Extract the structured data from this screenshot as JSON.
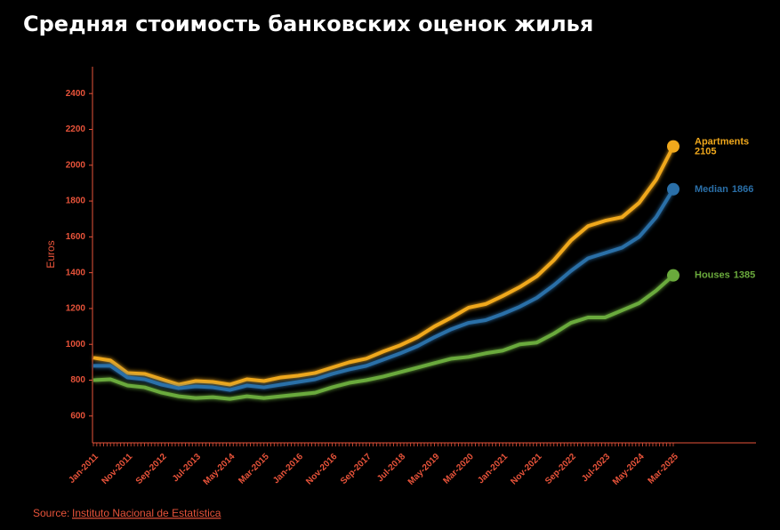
{
  "chart_data": {
    "type": "line",
    "title": "Средняя стоимость банковских оценок жилья",
    "y_label": "Euros",
    "source_prefix": "Source:",
    "source_link": "Instituto Nacional de Estatística",
    "categories": [
      "Jan-2011",
      null,
      "Nov-2011",
      null,
      "Sep-2012",
      null,
      "Jul-2013",
      null,
      "May-2014",
      null,
      "Mar-2015",
      null,
      "Jan-2016",
      null,
      "Nov-2016",
      null,
      "Sep-2017",
      null,
      "Jul-2018",
      null,
      "May-2019",
      null,
      "Mar-2020",
      null,
      "Jan-2021",
      null,
      "Nov-2021",
      null,
      "Sep-2022",
      null,
      "Jul-2023",
      null,
      "May-2024",
      null,
      "Mar-2025"
    ],
    "series": [
      {
        "name": "Apartments",
        "color": "#f0a81c",
        "values": [
          925,
          910,
          840,
          835,
          805,
          775,
          795,
          790,
          775,
          805,
          795,
          815,
          825,
          840,
          870,
          900,
          920,
          960,
          995,
          1040,
          1100,
          1150,
          1205,
          1225,
          1270,
          1320,
          1380,
          1470,
          1580,
          1660,
          1690,
          1710,
          1790,
          1920,
          2105
        ]
      },
      {
        "name": "Median",
        "color": "#2a6fa8",
        "values": [
          880,
          880,
          815,
          805,
          775,
          755,
          765,
          760,
          745,
          770,
          760,
          775,
          790,
          805,
          835,
          860,
          880,
          915,
          950,
          990,
          1040,
          1085,
          1120,
          1135,
          1170,
          1210,
          1260,
          1330,
          1410,
          1480,
          1510,
          1540,
          1600,
          1710,
          1866
        ]
      },
      {
        "name": "Houses",
        "color": "#6aaa3c",
        "values": [
          800,
          805,
          770,
          760,
          730,
          710,
          700,
          705,
          695,
          710,
          700,
          710,
          720,
          730,
          760,
          785,
          800,
          820,
          845,
          870,
          895,
          920,
          930,
          950,
          965,
          1000,
          1010,
          1060,
          1120,
          1150,
          1150,
          1190,
          1230,
          1300,
          1385
        ]
      }
    ],
    "ylim": [
      450,
      2550
    ],
    "yticks": [
      600,
      800,
      1000,
      1200,
      1400,
      1600,
      1800,
      2000,
      2200,
      2400
    ],
    "axis_color": "#e8533a"
  }
}
